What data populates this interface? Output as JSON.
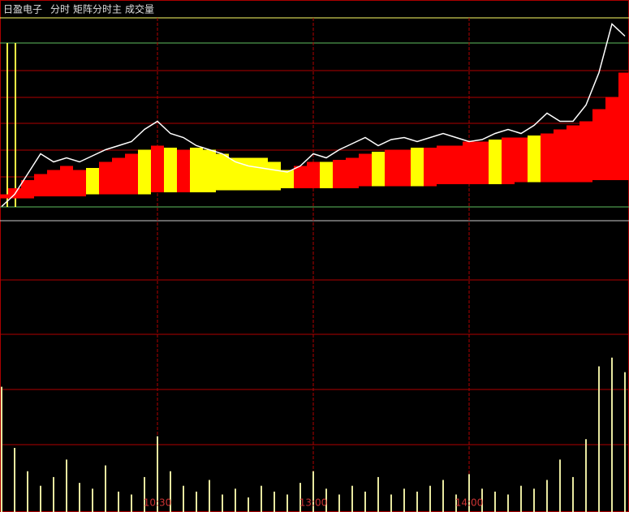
{
  "chart_data": [
    {
      "type": "line",
      "title": "日盈电子",
      "mode": "分时",
      "indicator": "矩阵分时主",
      "x": [
        0,
        5,
        10,
        15,
        20,
        25,
        30,
        35,
        40,
        45,
        50,
        55,
        60,
        65,
        70,
        75,
        80,
        85,
        90,
        95,
        100,
        105,
        110,
        115,
        120,
        125,
        130,
        135,
        140,
        145,
        150,
        155,
        160,
        165,
        170,
        175,
        180,
        185,
        190,
        195,
        200,
        205,
        210,
        215,
        220,
        225,
        230,
        235,
        240
      ],
      "xlim": [
        0,
        240
      ],
      "ylim": [
        0,
        100
      ],
      "series": [
        {
          "color": "#ffffff",
          "values": [
            7,
            13,
            23,
            33,
            29,
            31,
            29,
            32,
            35,
            37,
            39,
            45,
            49,
            43,
            41,
            37,
            35,
            33,
            29,
            27,
            26,
            25,
            24,
            27,
            33,
            31,
            35,
            38,
            41,
            37,
            40,
            41,
            39,
            41,
            43,
            41,
            39,
            40,
            43,
            45,
            43,
            47,
            53,
            49,
            49,
            57,
            73,
            97,
            91
          ]
        }
      ],
      "band": {
        "low": [
          11,
          11,
          11,
          12,
          12,
          12,
          12,
          13,
          13,
          13,
          13,
          13,
          14,
          14,
          14,
          14,
          14,
          15,
          15,
          15,
          15,
          15,
          16,
          16,
          16,
          16,
          16,
          16,
          17,
          17,
          17,
          17,
          17,
          17,
          18,
          18,
          18,
          18,
          18,
          18,
          19,
          19,
          19,
          19,
          19,
          19,
          20,
          20,
          20
        ],
        "high": [
          13,
          16,
          20,
          23,
          25,
          27,
          25,
          26,
          29,
          31,
          33,
          35,
          37,
          36,
          35,
          36,
          35,
          33,
          31,
          31,
          31,
          29,
          25,
          27,
          29,
          29,
          30,
          31,
          33,
          34,
          35,
          35,
          36,
          36,
          37,
          37,
          39,
          39,
          40,
          41,
          41,
          42,
          43,
          45,
          47,
          49,
          55,
          61,
          73
        ],
        "colors": [
          "#ff0000",
          "#ff0000",
          "#ff0000",
          "#ff0000",
          "#ff0000",
          "#ff0000",
          "#ff0000",
          "#ffff00",
          "#ff0000",
          "#ff0000",
          "#ff0000",
          "#ffff00",
          "#ff0000",
          "#ffff00",
          "#ff0000",
          "#ffff00",
          "#ffff00",
          "#ffff00",
          "#ffff00",
          "#ffff00",
          "#ffff00",
          "#ffff00",
          "#ffff00",
          "#ff0000",
          "#ff0000",
          "#ffff00",
          "#ff0000",
          "#ff0000",
          "#ff0000",
          "#ffff00",
          "#ff0000",
          "#ff0000",
          "#ffff00",
          "#ff0000",
          "#ff0000",
          "#ff0000",
          "#ff0000",
          "#ff0000",
          "#ffff00",
          "#ff0000",
          "#ff0000",
          "#ffff00",
          "#ff0000",
          "#ff0000",
          "#ff0000",
          "#ff0000",
          "#ff0000",
          "#ff0000",
          "#ff0000"
        ]
      }
    },
    {
      "type": "bar",
      "title": "成交量",
      "x": [
        0,
        5,
        10,
        15,
        20,
        25,
        30,
        35,
        40,
        45,
        50,
        55,
        60,
        65,
        70,
        75,
        80,
        85,
        90,
        95,
        100,
        105,
        110,
        115,
        120,
        125,
        130,
        135,
        140,
        145,
        150,
        155,
        160,
        165,
        170,
        175,
        180,
        185,
        190,
        195,
        200,
        205,
        210,
        215,
        220,
        225,
        230,
        235,
        240
      ],
      "xlim": [
        0,
        240
      ],
      "ylim": [
        0,
        100
      ],
      "color": "#e8e8a0",
      "xticks": [
        {
          "value": 60,
          "label": "10:30"
        },
        {
          "value": 120,
          "label": "13:00"
        },
        {
          "value": 180,
          "label": "14:00"
        }
      ],
      "values": [
        43,
        22,
        14,
        9,
        12,
        18,
        10,
        8,
        16,
        7,
        6,
        12,
        26,
        14,
        9,
        7,
        11,
        6,
        8,
        5,
        9,
        7,
        6,
        10,
        14,
        8,
        6,
        9,
        7,
        12,
        6,
        8,
        7,
        9,
        11,
        6,
        13,
        8,
        7,
        6,
        9,
        8,
        11,
        18,
        12,
        25,
        50,
        53,
        48
      ]
    }
  ]
}
